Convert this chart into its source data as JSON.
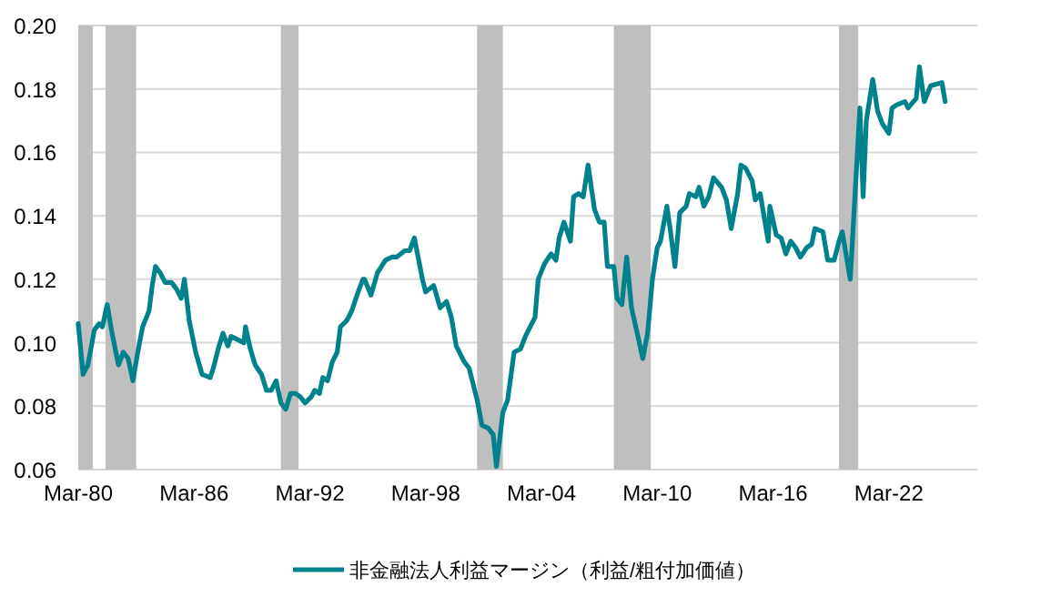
{
  "chart_data": {
    "type": "line",
    "ylim": [
      0.06,
      0.2
    ],
    "yticks": [
      {
        "value": 0.06,
        "label": "0.06"
      },
      {
        "value": 0.08,
        "label": "0.08"
      },
      {
        "value": 0.1,
        "label": "0.10"
      },
      {
        "value": 0.12,
        "label": "0.12"
      },
      {
        "value": 0.14,
        "label": "0.14"
      },
      {
        "value": 0.16,
        "label": "0.16"
      },
      {
        "value": 0.18,
        "label": "0.18"
      },
      {
        "value": 0.2,
        "label": "0.20"
      }
    ],
    "xlim": [
      "1980-03",
      "2026-10"
    ],
    "xticks": [
      {
        "value": "1980-03",
        "label": "Mar-80"
      },
      {
        "value": "1986-03",
        "label": "Mar-86"
      },
      {
        "value": "1992-03",
        "label": "Mar-92"
      },
      {
        "value": "1998-03",
        "label": "Mar-98"
      },
      {
        "value": "2004-03",
        "label": "Mar-04"
      },
      {
        "value": "2010-03",
        "label": "Mar-10"
      },
      {
        "value": "2016-03",
        "label": "Mar-16"
      },
      {
        "value": "2022-03",
        "label": "Mar-22"
      }
    ],
    "grid": "y",
    "legend": "bottom",
    "line_style": "solid",
    "marker": "none",
    "bands": [
      {
        "axis": "x",
        "from": "1980-03",
        "to": "1980-12",
        "color": "#bfbfbf"
      },
      {
        "axis": "x",
        "from": "1981-08",
        "to": "1983-03",
        "color": "#bfbfbf"
      },
      {
        "axis": "x",
        "from": "1990-09",
        "to": "1991-08",
        "color": "#bfbfbf"
      },
      {
        "axis": "x",
        "from": "2000-11",
        "to": "2002-03",
        "color": "#bfbfbf"
      },
      {
        "axis": "x",
        "from": "2007-12",
        "to": "2009-11",
        "color": "#bfbfbf"
      },
      {
        "axis": "x",
        "from": "2019-08",
        "to": "2020-08",
        "color": "#bfbfbf"
      }
    ],
    "series": [
      {
        "name": "非金融法人利益マージン（利益/粗付加価値）",
        "color": "#00828c",
        "x": [
          "1980-03",
          "1980-06",
          "1980-09",
          "1981-01",
          "1981-04",
          "1981-06",
          "1981-09",
          "1981-12",
          "1982-04",
          "1982-07",
          "1982-10",
          "1983-01",
          "1983-04",
          "1983-07",
          "1983-11",
          "1984-01",
          "1984-03",
          "1984-06",
          "1984-09",
          "1985-01",
          "1985-04",
          "1985-07",
          "1985-09",
          "1985-12",
          "1986-04",
          "1986-08",
          "1987-01",
          "1987-03",
          "1987-06",
          "1987-09",
          "1987-12",
          "1988-02",
          "1988-06",
          "1988-10",
          "1988-11",
          "1989-02",
          "1989-05",
          "1989-09",
          "1989-12",
          "1990-03",
          "1990-06",
          "1990-09",
          "1990-12",
          "1991-03",
          "1991-06",
          "1991-09",
          "1991-12",
          "1992-04",
          "1992-06",
          "1992-09",
          "1992-11",
          "1993-02",
          "1993-05",
          "1993-08",
          "1993-10",
          "1994-02",
          "1994-05",
          "1994-09",
          "1994-12",
          "1995-01",
          "1995-05",
          "1995-09",
          "1996-02",
          "1996-06",
          "1996-09",
          "1997-02",
          "1997-05",
          "1997-08",
          "1998-01",
          "1998-03",
          "1998-08",
          "1998-12",
          "1999-04",
          "1999-07",
          "1999-10",
          "2000-03",
          "2000-06",
          "2000-11",
          "2001-02",
          "2001-06",
          "2001-09",
          "2001-11",
          "2002-03",
          "2002-06",
          "2002-10",
          "2003-02",
          "2003-05",
          "2003-11",
          "2004-01",
          "2004-05",
          "2004-09",
          "2004-12",
          "2005-02",
          "2005-05",
          "2005-09",
          "2005-11",
          "2006-02",
          "2006-05",
          "2006-08",
          "2006-12",
          "2007-03",
          "2007-06",
          "2007-08",
          "2007-12",
          "2008-02",
          "2008-05",
          "2008-08",
          "2008-11",
          "2009-03",
          "2009-06",
          "2009-09",
          "2009-12",
          "2010-03",
          "2010-05",
          "2010-09",
          "2010-11",
          "2011-02",
          "2011-05",
          "2011-09",
          "2011-11",
          "2012-03",
          "2012-05",
          "2012-08",
          "2012-11",
          "2013-02",
          "2013-07",
          "2013-10",
          "2014-01",
          "2014-05",
          "2014-07",
          "2014-10",
          "2015-02",
          "2015-04",
          "2015-07",
          "2015-12",
          "2016-01",
          "2016-05",
          "2016-08",
          "2016-11",
          "2017-02",
          "2017-05",
          "2017-08",
          "2017-12",
          "2018-03",
          "2018-05",
          "2018-10",
          "2019-01",
          "2019-05",
          "2019-08",
          "2019-10",
          "2020-03",
          "2020-09",
          "2020-11",
          "2021-01",
          "2021-05",
          "2021-08",
          "2021-11",
          "2022-03",
          "2022-05",
          "2022-08",
          "2023-01",
          "2023-03",
          "2023-08",
          "2023-10",
          "2024-01",
          "2024-05",
          "2024-12",
          "2025-02"
        ],
        "values": [
          0.106,
          0.09,
          0.093,
          0.104,
          0.106,
          0.105,
          0.112,
          0.103,
          0.093,
          0.097,
          0.095,
          0.088,
          0.097,
          0.105,
          0.11,
          0.118,
          0.124,
          0.122,
          0.119,
          0.119,
          0.117,
          0.114,
          0.12,
          0.107,
          0.097,
          0.09,
          0.089,
          0.092,
          0.098,
          0.103,
          0.099,
          0.102,
          0.101,
          0.1,
          0.105,
          0.098,
          0.093,
          0.09,
          0.085,
          0.085,
          0.088,
          0.081,
          0.079,
          0.084,
          0.084,
          0.083,
          0.081,
          0.083,
          0.085,
          0.084,
          0.089,
          0.088,
          0.094,
          0.097,
          0.105,
          0.107,
          0.11,
          0.116,
          0.12,
          0.12,
          0.115,
          0.122,
          0.126,
          0.127,
          0.127,
          0.129,
          0.129,
          0.133,
          0.12,
          0.116,
          0.118,
          0.111,
          0.113,
          0.108,
          0.099,
          0.094,
          0.092,
          0.082,
          0.074,
          0.073,
          0.071,
          0.061,
          0.078,
          0.082,
          0.097,
          0.098,
          0.102,
          0.108,
          0.12,
          0.125,
          0.128,
          0.126,
          0.133,
          0.138,
          0.132,
          0.146,
          0.147,
          0.146,
          0.156,
          0.142,
          0.138,
          0.138,
          0.124,
          0.124,
          0.114,
          0.112,
          0.127,
          0.111,
          0.102,
          0.095,
          0.103,
          0.12,
          0.13,
          0.132,
          0.143,
          0.136,
          0.124,
          0.141,
          0.143,
          0.147,
          0.146,
          0.149,
          0.143,
          0.146,
          0.152,
          0.149,
          0.145,
          0.136,
          0.147,
          0.156,
          0.155,
          0.151,
          0.145,
          0.147,
          0.132,
          0.143,
          0.134,
          0.133,
          0.128,
          0.132,
          0.13,
          0.127,
          0.13,
          0.131,
          0.136,
          0.135,
          0.126,
          0.126,
          0.132,
          0.135,
          0.12,
          0.174,
          0.146,
          0.17,
          0.183,
          0.173,
          0.169,
          0.166,
          0.174,
          0.175,
          0.176,
          0.174,
          0.177,
          0.187,
          0.176,
          0.181,
          0.182,
          0.176
        ]
      }
    ]
  }
}
